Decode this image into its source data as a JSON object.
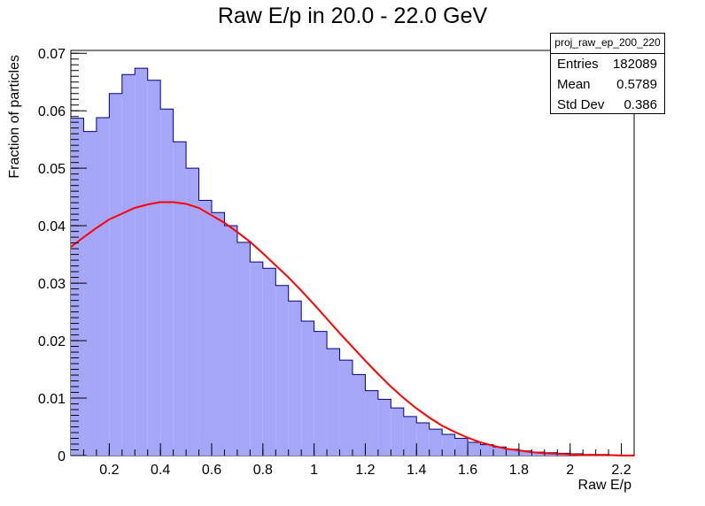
{
  "chart_data": {
    "type": "bar",
    "title": "Raw E/p in 20.0 - 22.0 GeV",
    "xlabel": "Raw E/p",
    "ylabel": "Fraction of particles",
    "xlim": [
      0.05,
      2.25
    ],
    "ylim": [
      0,
      0.0705
    ],
    "xticks": [
      0.2,
      0.4,
      0.6,
      0.8,
      1,
      1.2,
      1.4,
      1.6,
      1.8,
      2,
      2.2
    ],
    "yticks": [
      0,
      0.01,
      0.02,
      0.03,
      0.04,
      0.05,
      0.06,
      0.07
    ],
    "bin_width": 0.05,
    "bins_start": 0.05,
    "histogram_values": [
      0.0587,
      0.0564,
      0.0588,
      0.063,
      0.0663,
      0.0674,
      0.0653,
      0.0603,
      0.0546,
      0.05,
      0.0444,
      0.0423,
      0.04,
      0.0371,
      0.0337,
      0.0326,
      0.0296,
      0.0269,
      0.0234,
      0.0216,
      0.0186,
      0.0166,
      0.0141,
      0.0113,
      0.0098,
      0.0083,
      0.0068,
      0.0057,
      0.0046,
      0.0037,
      0.003,
      0.0023,
      0.0019,
      0.0015,
      0.0011,
      0.0008,
      0.0006,
      0.0005,
      0.0004,
      0.0003,
      0.0002,
      0.0002,
      0.0001,
      0.0001
    ],
    "fit_curve": {
      "x": [
        0.05,
        0.1,
        0.15,
        0.2,
        0.25,
        0.3,
        0.35,
        0.4,
        0.45,
        0.5,
        0.55,
        0.6,
        0.65,
        0.7,
        0.75,
        0.8,
        0.85,
        0.9,
        0.95,
        1.0,
        1.05,
        1.1,
        1.15,
        1.2,
        1.25,
        1.3,
        1.35,
        1.4,
        1.45,
        1.5,
        1.55,
        1.6,
        1.65,
        1.7,
        1.75,
        1.8,
        1.85,
        1.9,
        1.95,
        2.0,
        2.05,
        2.1,
        2.15,
        2.2,
        2.25
      ],
      "y": [
        0.0363,
        0.038,
        0.0396,
        0.0411,
        0.0421,
        0.0431,
        0.0437,
        0.0441,
        0.0441,
        0.0438,
        0.0431,
        0.0418,
        0.0405,
        0.0389,
        0.0372,
        0.0352,
        0.0331,
        0.031,
        0.0287,
        0.0263,
        0.0238,
        0.0213,
        0.0189,
        0.0165,
        0.0142,
        0.012,
        0.01,
        0.0082,
        0.0066,
        0.0052,
        0.0041,
        0.0031,
        0.0023,
        0.0017,
        0.0012,
        0.0009,
        0.0006,
        0.0004,
        0.0003,
        0.0002,
        0.0001,
        0.0001,
        0.0001,
        0.0,
        0.0
      ]
    },
    "fill_color": "#a6a6f9",
    "edge_color": "#000080",
    "fit_color": "#ff0000",
    "stats_box": {
      "name": "proj_raw_ep_200_220",
      "entries_label": "Entries",
      "entries_value": "182089",
      "mean_label": "Mean",
      "mean_value": "0.5789",
      "stddev_label": "Std Dev",
      "stddev_value": "0.386"
    }
  }
}
